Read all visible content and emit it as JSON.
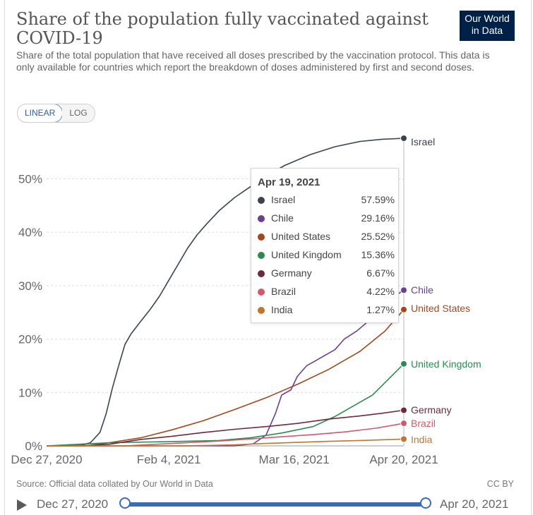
{
  "header": {
    "title": "Share of the population fully vaccinated against COVID-19",
    "subtitle": "Share of the total population that have received all doses prescribed by the vaccination protocol. This data is only available for countries which report the breakdown of doses administered by first and second doses.",
    "logo_line1": "Our World",
    "logo_line2": "in Data"
  },
  "controls": {
    "linear_label": "LINEAR",
    "log_label": "LOG"
  },
  "footer": {
    "source": "Source: Official data collated by Our World in Data",
    "license": "CC BY"
  },
  "timeline": {
    "start": "Dec 27, 2020",
    "end": "Apr 20, 2021"
  },
  "colors": {
    "Israel": "#3a4451",
    "Chile": "#6d3e91",
    "United States": "#a2481f",
    "United Kingdom": "#2b8a52",
    "Germany": "#6b2b3b",
    "Brazil": "#d05a6c",
    "India": "#c0762e"
  },
  "tooltip": {
    "date": "Apr 19, 2021",
    "rows": [
      {
        "name": "Israel",
        "value": "57.59%",
        "color": "#3a4451"
      },
      {
        "name": "Chile",
        "value": "29.16%",
        "color": "#6d3e91"
      },
      {
        "name": "United States",
        "value": "25.52%",
        "color": "#a2481f"
      },
      {
        "name": "United Kingdom",
        "value": "15.36%",
        "color": "#2b8a52"
      },
      {
        "name": "Germany",
        "value": "6.67%",
        "color": "#6b2b3b"
      },
      {
        "name": "Brazil",
        "value": "4.22%",
        "color": "#d05a6c"
      },
      {
        "name": "India",
        "value": "1.27%",
        "color": "#c0762e"
      }
    ]
  },
  "chart_data": {
    "type": "line",
    "title": "Share of the population fully vaccinated against COVID-19",
    "xlabel": "",
    "ylabel": "",
    "x_range_days": [
      0,
      114
    ],
    "ylim": [
      0,
      57.59
    ],
    "yticks": [
      {
        "value": 0,
        "label": "0%"
      },
      {
        "value": 10,
        "label": "10%"
      },
      {
        "value": 20,
        "label": "20%"
      },
      {
        "value": 30,
        "label": "30%"
      },
      {
        "value": 40,
        "label": "40%"
      },
      {
        "value": 50,
        "label": "50%"
      }
    ],
    "xticks": [
      {
        "day": 0,
        "label": "Dec 27, 2020"
      },
      {
        "day": 39,
        "label": "Feb 4, 2021"
      },
      {
        "day": 79,
        "label": "Mar 16, 2021"
      },
      {
        "day": 114,
        "label": "Apr 20, 2021"
      }
    ],
    "series": [
      {
        "name": "Israel",
        "color": "#3a4451",
        "label": "Israel",
        "points": [
          [
            0,
            0
          ],
          [
            10,
            0
          ],
          [
            14,
            0.6
          ],
          [
            17,
            2.5
          ],
          [
            19,
            6
          ],
          [
            21,
            10.8
          ],
          [
            23,
            15
          ],
          [
            25,
            19
          ],
          [
            27,
            21
          ],
          [
            30,
            23.3
          ],
          [
            33,
            25.5
          ],
          [
            36,
            28
          ],
          [
            39,
            31
          ],
          [
            42,
            34
          ],
          [
            45,
            37
          ],
          [
            48,
            39.5
          ],
          [
            51,
            41.5
          ],
          [
            55,
            44
          ],
          [
            60,
            46.5
          ],
          [
            65,
            48.5
          ],
          [
            70,
            50.5
          ],
          [
            76,
            52.5
          ],
          [
            84,
            54.5
          ],
          [
            92,
            56
          ],
          [
            100,
            57
          ],
          [
            107,
            57.4
          ],
          [
            114,
            57.59
          ]
        ]
      },
      {
        "name": "Chile",
        "color": "#6d3e91",
        "label": "Chile",
        "points": [
          [
            0,
            0
          ],
          [
            60,
            0
          ],
          [
            66,
            0.4
          ],
          [
            70,
            2
          ],
          [
            73,
            6
          ],
          [
            75,
            9.5
          ],
          [
            78,
            10.5
          ],
          [
            80,
            13
          ],
          [
            83,
            15
          ],
          [
            86,
            16
          ],
          [
            89,
            17
          ],
          [
            92,
            18
          ],
          [
            95,
            20
          ],
          [
            99,
            21.5
          ],
          [
            103,
            23.5
          ],
          [
            107,
            25.5
          ],
          [
            111,
            28
          ],
          [
            114,
            29.16
          ]
        ]
      },
      {
        "name": "United States",
        "color": "#a2481f",
        "label": "United States",
        "points": [
          [
            0,
            0
          ],
          [
            14,
            0.1
          ],
          [
            20,
            0.6
          ],
          [
            30,
            1.5
          ],
          [
            40,
            3
          ],
          [
            50,
            4.7
          ],
          [
            60,
            6.8
          ],
          [
            70,
            9
          ],
          [
            80,
            11.5
          ],
          [
            90,
            14.3
          ],
          [
            100,
            17.7
          ],
          [
            108,
            21.5
          ],
          [
            114,
            25.52
          ]
        ]
      },
      {
        "name": "United Kingdom",
        "color": "#2b8a52",
        "label": "United Kingdom",
        "points": [
          [
            0,
            0
          ],
          [
            20,
            0.6
          ],
          [
            40,
            0.8
          ],
          [
            55,
            1.0
          ],
          [
            65,
            1.5
          ],
          [
            75,
            2.4
          ],
          [
            85,
            3.6
          ],
          [
            92,
            5.5
          ],
          [
            98,
            7.5
          ],
          [
            104,
            9.5
          ],
          [
            110,
            13
          ],
          [
            114,
            15.36
          ]
        ]
      },
      {
        "name": "Germany",
        "color": "#6b2b3b",
        "label": "Germany",
        "points": [
          [
            0,
            0
          ],
          [
            12,
            0
          ],
          [
            20,
            0.3
          ],
          [
            30,
            1.2
          ],
          [
            40,
            1.8
          ],
          [
            50,
            2.5
          ],
          [
            60,
            3.1
          ],
          [
            70,
            3.6
          ],
          [
            80,
            4.2
          ],
          [
            90,
            5
          ],
          [
            100,
            5.6
          ],
          [
            107,
            6.1
          ],
          [
            114,
            6.67
          ]
        ]
      },
      {
        "name": "Brazil",
        "color": "#d05a6c",
        "label": "Brazil",
        "points": [
          [
            0,
            0
          ],
          [
            25,
            0
          ],
          [
            35,
            0.3
          ],
          [
            45,
            0.6
          ],
          [
            55,
            0.9
          ],
          [
            65,
            1.3
          ],
          [
            75,
            1.7
          ],
          [
            85,
            2.1
          ],
          [
            95,
            2.6
          ],
          [
            105,
            3.3
          ],
          [
            114,
            4.22
          ]
        ]
      },
      {
        "name": "India",
        "color": "#c0762e",
        "label": "India",
        "points": [
          [
            0,
            0
          ],
          [
            40,
            0
          ],
          [
            50,
            0.05
          ],
          [
            60,
            0.2
          ],
          [
            70,
            0.45
          ],
          [
            80,
            0.65
          ],
          [
            90,
            0.85
          ],
          [
            100,
            1.0
          ],
          [
            114,
            1.27
          ]
        ]
      }
    ]
  }
}
